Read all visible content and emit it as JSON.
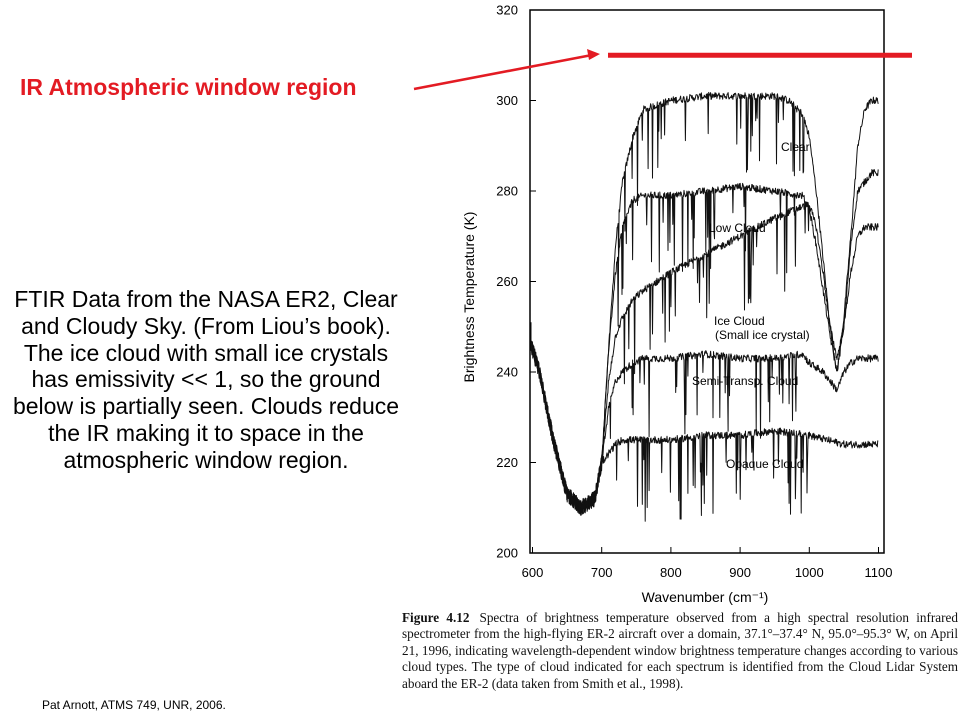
{
  "annotation": {
    "text": "IR Atmospheric window region",
    "color": "#e31b23"
  },
  "description": "FTIR Data from the NASA ER2, Clear and Cloudy Sky. (From Liou’s book).  The ice cloud with small ice crystals has emissivity << 1, so the ground below is partially seen. Clouds reduce the IR making it to space in the atmospheric window region.",
  "credit": "Pat Arnott, ATMS 749, UNR, 2006.",
  "caption": {
    "figure": "Figure 4.12",
    "text": "Spectra of brightness temperature observed from a high spectral resolution infrared spectrometer from the high-flying ER-2 aircraft over a domain, 37.1°–37.4° N, 95.0°–95.3° W, on April 21, 1996, indicating wavelength-dependent window brightness temperature changes according to various cloud types. The type of cloud indicated for each spectrum is identified from the Cloud Lidar System aboard the ER-2 (data taken from Smith et al., 1998)."
  },
  "chart_data": {
    "type": "line",
    "xlabel": "Wavenumber (cm⁻¹)",
    "ylabel": "Brightness Temperature (K)",
    "xlim": [
      600,
      1100
    ],
    "ylim": [
      200,
      320
    ],
    "xticks": [
      600,
      700,
      800,
      900,
      1000,
      1100
    ],
    "yticks": [
      200,
      220,
      240,
      260,
      280,
      300,
      320
    ],
    "window_band_temperature": 310,
    "series": [
      {
        "name": "Clear",
        "x": [
          590,
          610,
          630,
          650,
          670,
          690,
          700,
          710,
          720,
          730,
          745,
          760,
          800,
          850,
          900,
          950,
          970,
          990,
          1000,
          1010,
          1020,
          1030,
          1040,
          1050,
          1060,
          1070,
          1080,
          1090,
          1100
        ],
        "y": [
          250,
          240,
          225,
          213,
          210,
          212,
          220,
          245,
          268,
          282,
          292,
          298,
          300,
          301,
          301,
          301,
          300,
          297,
          292,
          280,
          265,
          250,
          240,
          252,
          270,
          290,
          298,
          300,
          300
        ]
      },
      {
        "name": "Low Cloud",
        "x": [
          590,
          610,
          630,
          650,
          670,
          690,
          700,
          710,
          720,
          730,
          745,
          760,
          800,
          850,
          900,
          950,
          990,
          1000,
          1010,
          1020,
          1030,
          1040,
          1050,
          1060,
          1070,
          1080,
          1090,
          1100
        ],
        "y": [
          250,
          240,
          225,
          213,
          210,
          212,
          220,
          245,
          262,
          272,
          278,
          279,
          279,
          280,
          281,
          280,
          279,
          276,
          268,
          258,
          248,
          240,
          250,
          268,
          280,
          282,
          284,
          284
        ]
      },
      {
        "name": "Ice Cloud (Small ice crystal)",
        "x": [
          590,
          610,
          630,
          650,
          670,
          690,
          700,
          710,
          720,
          730,
          745,
          760,
          800,
          850,
          900,
          950,
          980,
          1000,
          1010,
          1020,
          1030,
          1040,
          1050,
          1060,
          1070,
          1080,
          1090,
          1100
        ],
        "y": [
          250,
          240,
          225,
          213,
          210,
          212,
          220,
          238,
          248,
          252,
          256,
          258,
          262,
          266,
          270,
          274,
          276,
          277,
          272,
          262,
          250,
          243,
          250,
          262,
          270,
          272,
          272,
          272
        ]
      },
      {
        "name": "Semi-Transp. Cloud",
        "x": [
          590,
          610,
          630,
          650,
          670,
          690,
          700,
          710,
          720,
          730,
          745,
          760,
          800,
          850,
          900,
          950,
          990,
          1000,
          1020,
          1040,
          1050,
          1060,
          1070,
          1080,
          1090,
          1100
        ],
        "y": [
          250,
          240,
          225,
          213,
          210,
          212,
          220,
          232,
          238,
          240,
          242,
          243,
          243,
          244,
          243,
          243,
          244,
          242,
          240,
          236,
          240,
          242,
          243,
          243,
          243,
          243
        ]
      },
      {
        "name": "Opaque Cloud",
        "x": [
          590,
          610,
          630,
          650,
          670,
          690,
          700,
          710,
          720,
          730,
          745,
          760,
          800,
          850,
          900,
          950,
          1000,
          1050,
          1100
        ],
        "y": [
          250,
          240,
          225,
          213,
          210,
          212,
          220,
          222,
          224,
          225,
          225,
          225,
          225,
          226,
          226,
          227,
          226,
          224,
          224
        ]
      }
    ]
  }
}
